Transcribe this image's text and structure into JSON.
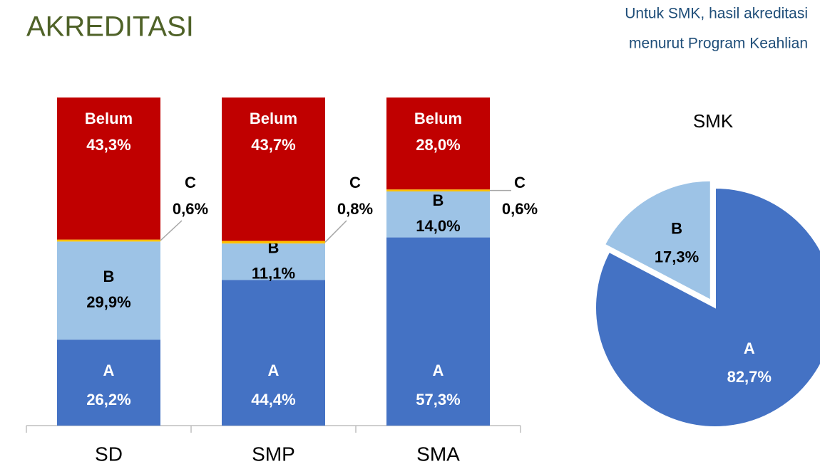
{
  "title": "AKREDITASI",
  "note": [
    "Untuk SMK, hasil akreditasi",
    "menurut Program Keahlian"
  ],
  "chart_data": [
    {
      "type": "stacked_bar",
      "categories": [
        "SD",
        "SMP",
        "SMA"
      ],
      "series": [
        {
          "name": "A",
          "color": "#4472c4",
          "values": [
            26.2,
            44.4,
            57.3
          ],
          "value_labels": [
            "26,2%",
            "44,4%",
            "57,3%"
          ]
        },
        {
          "name": "B",
          "color": "#9dc3e6",
          "values": [
            29.9,
            11.1,
            14.0
          ],
          "value_labels": [
            "29,9%",
            "11,1%",
            "14,0%"
          ]
        },
        {
          "name": "C",
          "color": "#ffc000",
          "values": [
            0.6,
            0.8,
            0.6
          ],
          "value_labels": [
            "0,6%",
            "0,8%",
            "0,6%"
          ]
        },
        {
          "name": "Belum",
          "color": "#c00000",
          "values": [
            43.3,
            43.7,
            28.0
          ],
          "value_labels": [
            "43,3%",
            "43,7%",
            "28,0%"
          ]
        }
      ]
    },
    {
      "type": "pie",
      "title": "SMK",
      "categories": [
        "A",
        "B"
      ],
      "values": [
        82.7,
        17.3
      ],
      "value_labels": [
        "82,7%",
        "17,3%"
      ],
      "colors": [
        "#4472c4",
        "#9dc3e6"
      ]
    }
  ]
}
